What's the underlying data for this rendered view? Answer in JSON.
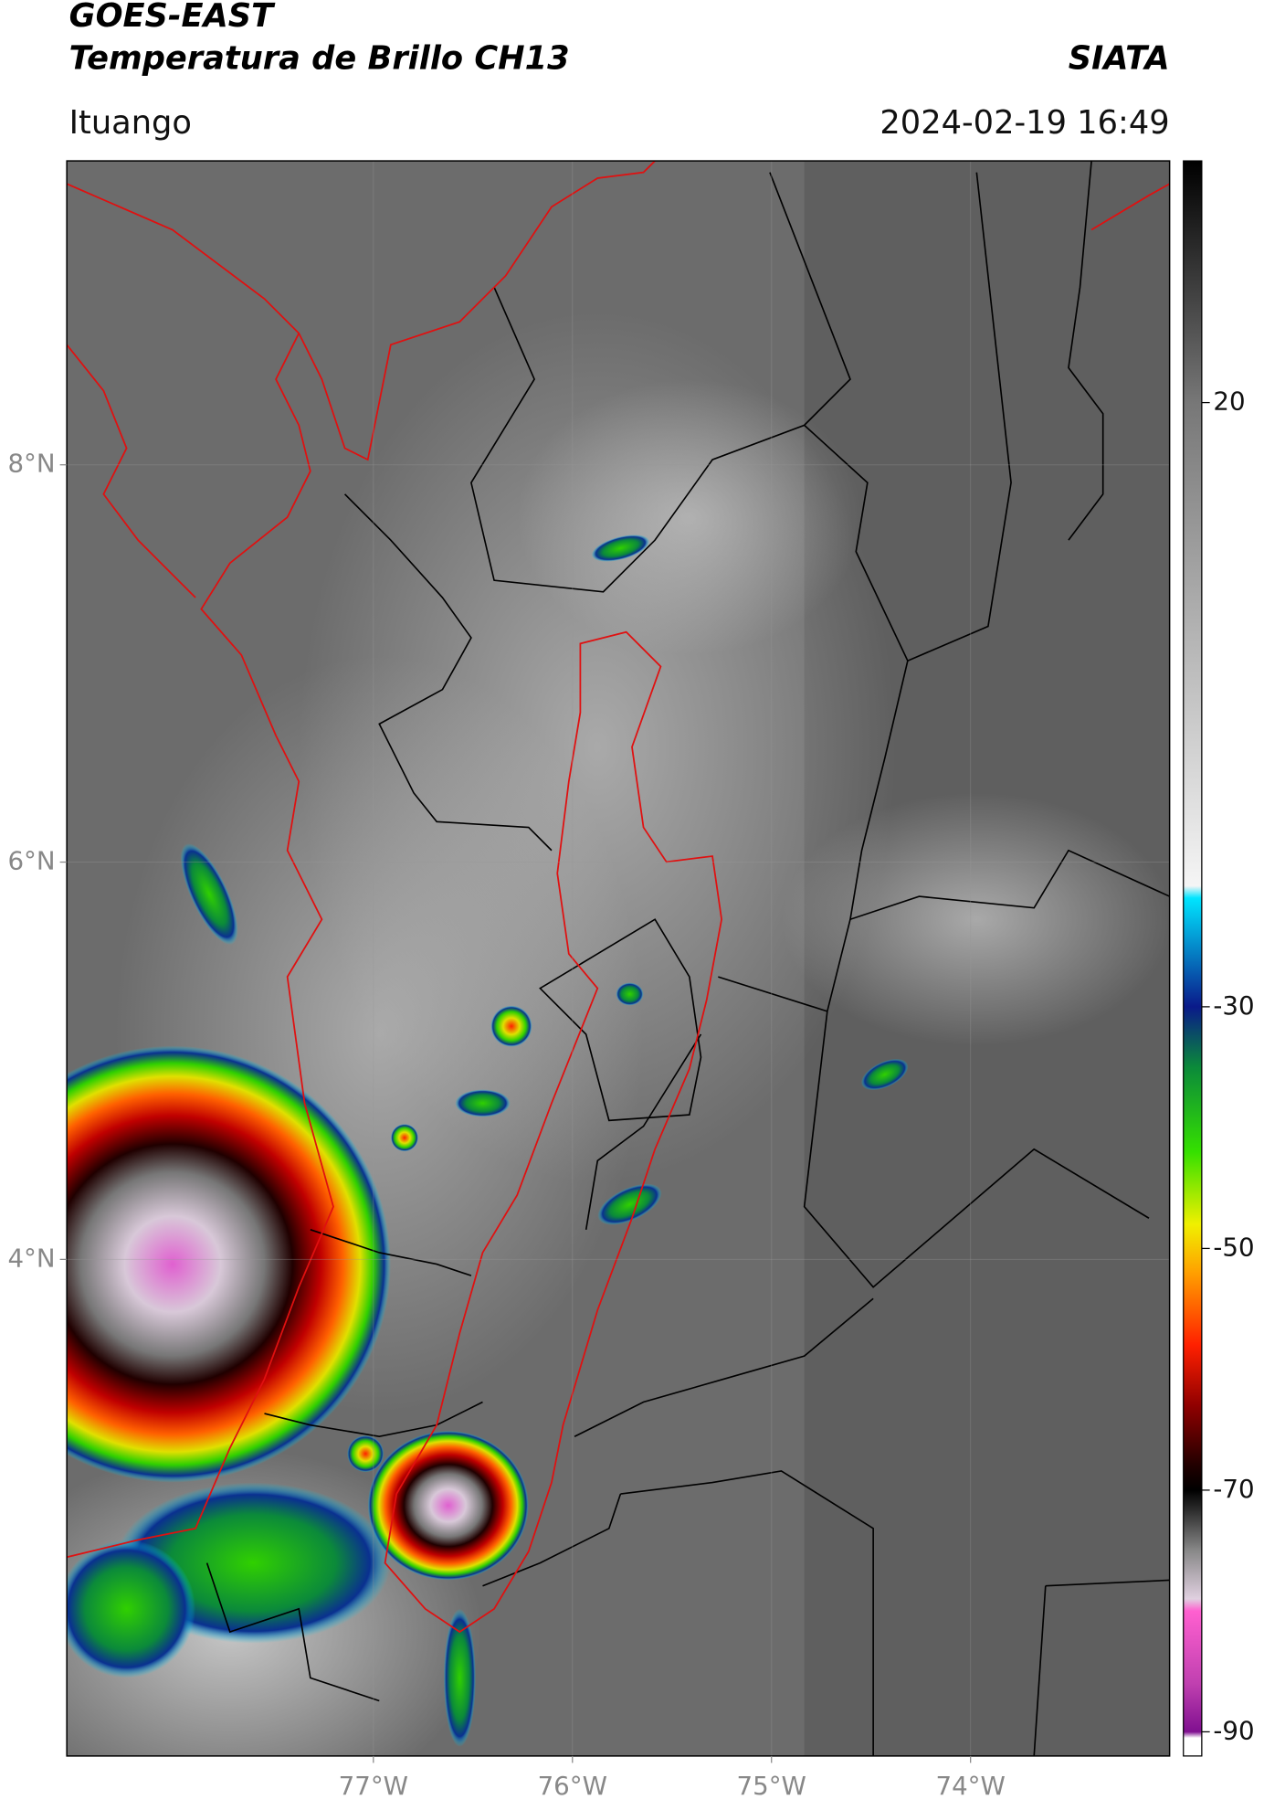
{
  "header": {
    "title": "GOES-EAST",
    "subtitle": "Temperatura de Brillo CH13",
    "brand": "SIATA",
    "location": "Ituango",
    "datetime": "2024-02-19 16:49"
  },
  "map": {
    "xlim": [
      -78.54,
      -73.0
    ],
    "ylim": [
      1.5,
      9.53
    ],
    "xticks": [
      {
        "value": -77,
        "label": "77°W"
      },
      {
        "value": -76,
        "label": "76°W"
      },
      {
        "value": -75,
        "label": "75°W"
      },
      {
        "value": -74,
        "label": "74°W"
      }
    ],
    "yticks": [
      {
        "value": 8,
        "label": "8°N"
      },
      {
        "value": 6,
        "label": "6°N"
      },
      {
        "value": 4,
        "label": "4°N"
      }
    ],
    "grid": true
  },
  "colorbar": {
    "clim": [
      -92,
      40
    ],
    "ticks": [
      20,
      -30,
      -50,
      -70,
      -90
    ],
    "colormap": [
      {
        "value": 40,
        "color": "#000000"
      },
      {
        "value": 20,
        "color": "#777777"
      },
      {
        "value": -20,
        "color": "#f5f5f5"
      },
      {
        "value": -21,
        "color": "#00e5ff"
      },
      {
        "value": -30,
        "color": "#0a1a8a"
      },
      {
        "value": -35,
        "color": "#0b8a3a"
      },
      {
        "value": -42,
        "color": "#35e000"
      },
      {
        "value": -48,
        "color": "#f0f000"
      },
      {
        "value": -52,
        "color": "#ffa000"
      },
      {
        "value": -58,
        "color": "#ff2000"
      },
      {
        "value": -63,
        "color": "#900000"
      },
      {
        "value": -68,
        "color": "#200000"
      },
      {
        "value": -70,
        "color": "#000000"
      },
      {
        "value": -75,
        "color": "#888888"
      },
      {
        "value": -79,
        "color": "#e0d0e0"
      },
      {
        "value": -80,
        "color": "#ff60d0"
      },
      {
        "value": -86,
        "color": "#c040b0"
      },
      {
        "value": -90,
        "color": "#801090"
      },
      {
        "value": -90.5,
        "color": "#ffffff"
      },
      {
        "value": -92,
        "color": "#ffffff"
      }
    ]
  }
}
